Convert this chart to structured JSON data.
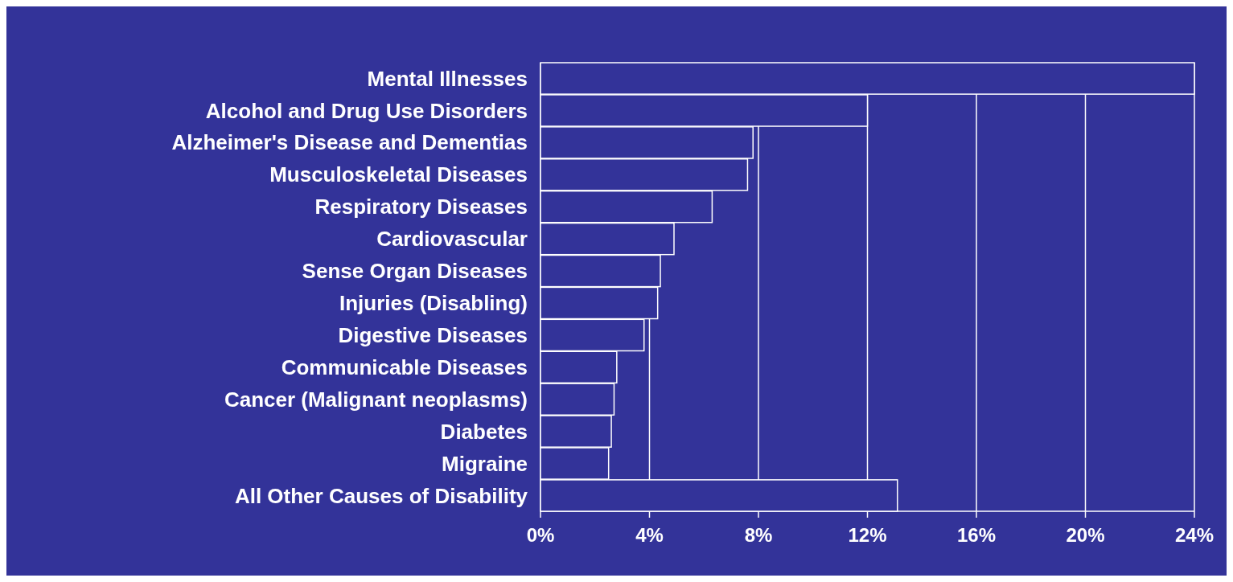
{
  "chart_data": {
    "type": "bar",
    "orientation": "horizontal",
    "categories": [
      "Mental Illnesses",
      "Alcohol and Drug Use Disorders",
      "Alzheimer's Disease and Dementias",
      "Musculoskeletal Diseases",
      "Respiratory Diseases",
      "Cardiovascular",
      "Sense Organ Diseases",
      "Injuries (Disabling)",
      "Digestive Diseases",
      "Communicable Diseases",
      "Cancer (Malignant neoplasms)",
      "Diabetes",
      "Migraine",
      "All Other Causes of Disability"
    ],
    "values": [
      24,
      12,
      7.8,
      7.6,
      6.3,
      4.9,
      4.4,
      4.3,
      3.8,
      2.8,
      2.7,
      2.6,
      2.5,
      13.1
    ],
    "color": "#333399",
    "xlim": [
      0,
      24
    ],
    "xticks": [
      {
        "value": 0,
        "label": "0%"
      },
      {
        "value": 4,
        "label": "4%"
      },
      {
        "value": 8,
        "label": "8%"
      },
      {
        "value": 12,
        "label": "12%"
      },
      {
        "value": 16,
        "label": "16%"
      },
      {
        "value": 20,
        "label": "20%"
      },
      {
        "value": 24,
        "label": "24%"
      }
    ],
    "grid": "x"
  }
}
